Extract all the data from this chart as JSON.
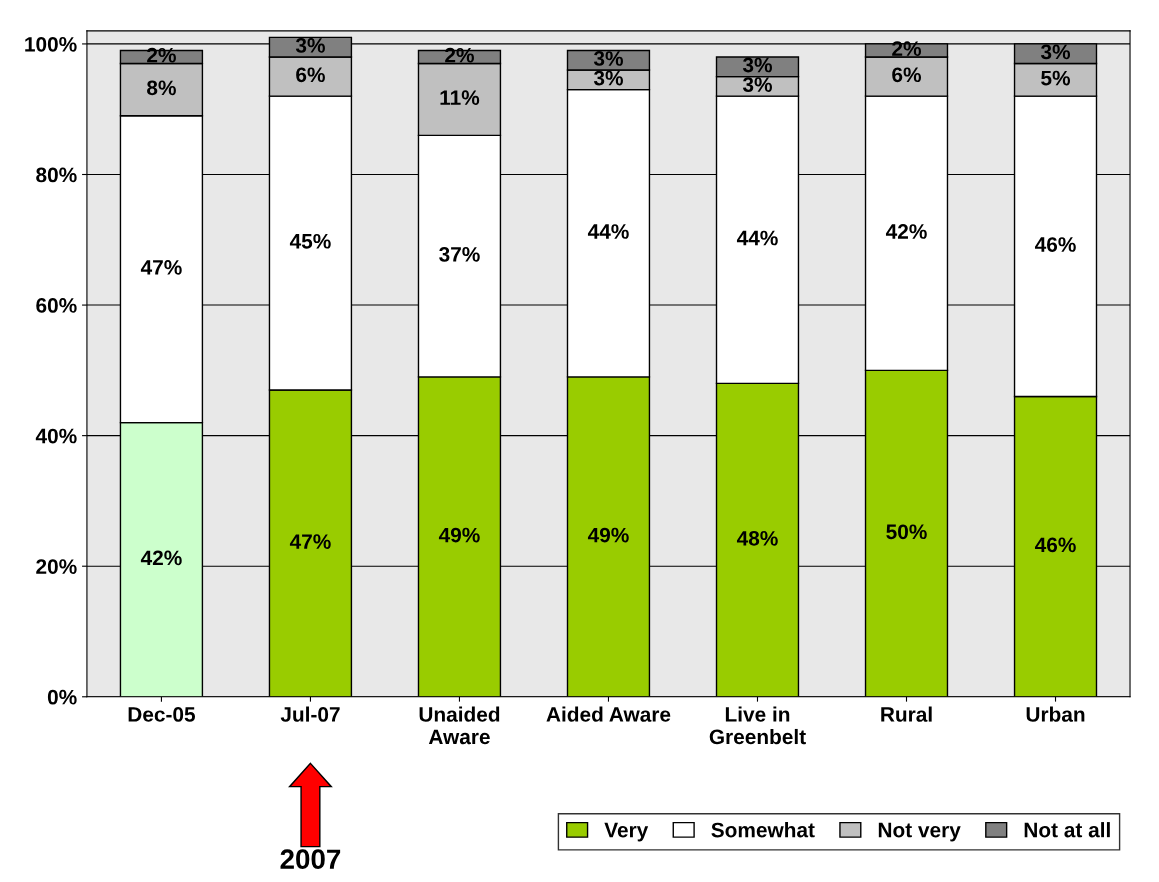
{
  "chart_data": {
    "type": "bar",
    "stacked": true,
    "categories": [
      "Dec-05",
      "Jul-07",
      "Unaided\nAware",
      "Aided Aware",
      "Live in\nGreenbelt",
      "Rural",
      "Urban"
    ],
    "series": [
      {
        "name": "Very",
        "color": "#99cc00",
        "colors": [
          "#ccffcc",
          "#99cc00",
          "#99cc00",
          "#99cc00",
          "#99cc00",
          "#99cc00",
          "#99cc00"
        ],
        "values": [
          42,
          47,
          49,
          49,
          48,
          50,
          46
        ],
        "value_labels": [
          "42%",
          "47%",
          "49%",
          "49%",
          "48%",
          "50%",
          "46%"
        ]
      },
      {
        "name": "Somewhat",
        "color": "#ffffff",
        "values": [
          47,
          45,
          37,
          44,
          44,
          42,
          46
        ],
        "value_labels": [
          "47%",
          "45%",
          "37%",
          "44%",
          "44%",
          "42%",
          "46%"
        ]
      },
      {
        "name": "Not very",
        "color": "#c0c0c0",
        "values": [
          8,
          6,
          11,
          3,
          3,
          6,
          5
        ],
        "value_labels": [
          "8%",
          "6%",
          "11%",
          "3%",
          "3%",
          "6%",
          "5%"
        ]
      },
      {
        "name": "Not at all",
        "color": "#808080",
        "values": [
          2,
          3,
          2,
          3,
          3,
          2,
          3
        ],
        "value_labels": [
          "2%",
          "3%",
          "2%",
          "3%",
          "3%",
          "2%",
          "3%"
        ]
      }
    ],
    "ylim": [
      0,
      102
    ],
    "yticks": [
      {
        "value": 0,
        "label": "0%"
      },
      {
        "value": 20,
        "label": "20%"
      },
      {
        "value": 40,
        "label": "40%"
      },
      {
        "value": 60,
        "label": "60%"
      },
      {
        "value": 80,
        "label": "80%"
      },
      {
        "value": 100,
        "label": "100%"
      }
    ],
    "grid": "y",
    "legend": "bottom right",
    "annotations": [
      "2007"
    ]
  }
}
